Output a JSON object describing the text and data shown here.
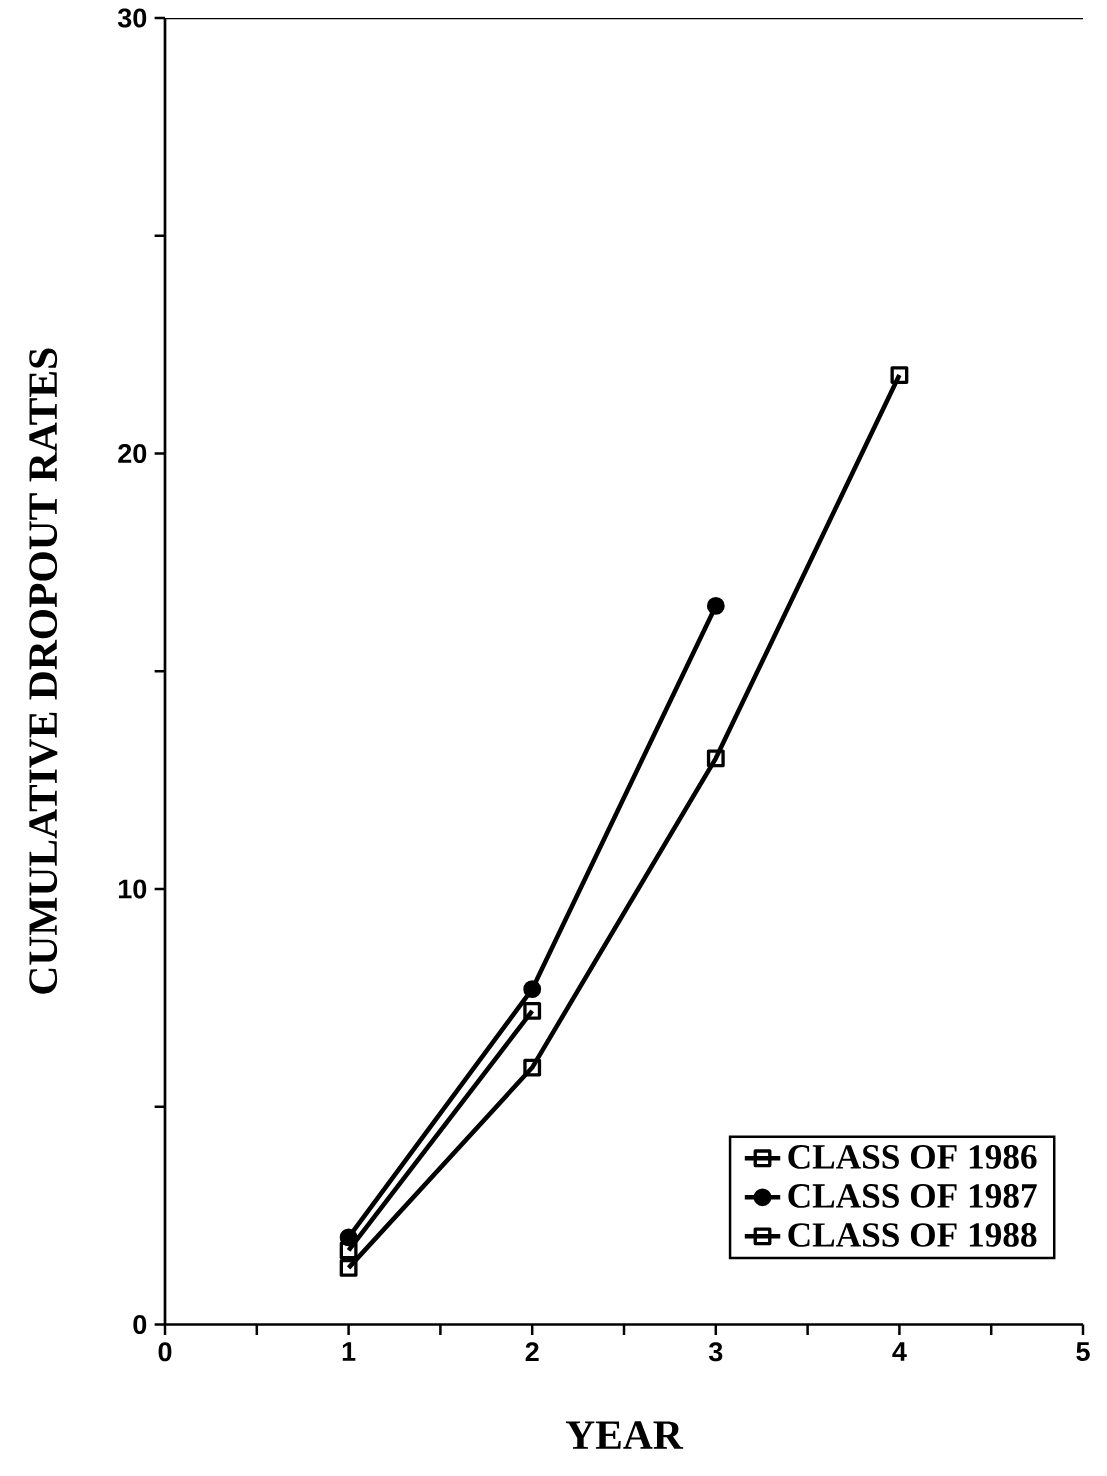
{
  "chart_data": {
    "type": "line",
    "xlabel": "YEAR",
    "ylabel": "CUMULATIVE DROPOUT RATES",
    "x": [
      1,
      2,
      3,
      4
    ],
    "series": [
      {
        "name": "CLASS OF 1986",
        "color": "#000000",
        "marker": "square",
        "values": [
          1.3,
          5.9,
          13.0,
          21.8
        ]
      },
      {
        "name": "CLASS OF 1987",
        "color": "#000000",
        "marker": "circle",
        "values": [
          2.0,
          7.7,
          16.5,
          null
        ]
      },
      {
        "name": "CLASS OF 1988",
        "color": "#000000",
        "marker": "square",
        "values": [
          1.7,
          7.2,
          null,
          null
        ]
      }
    ],
    "xlim": [
      0,
      5
    ],
    "ylim": [
      0,
      30
    ],
    "xticks": [
      0,
      {
        "value": 0.5,
        "label": null
      },
      1,
      {
        "value": 1.5,
        "label": null
      },
      2,
      {
        "value": 2.5,
        "label": null
      },
      3,
      {
        "value": 3.5,
        "label": null
      },
      4,
      {
        "value": 4.5,
        "label": null
      },
      5
    ],
    "yticks": [
      0,
      {
        "value": 5,
        "label": null
      },
      10,
      {
        "value": 15,
        "label": null
      },
      20,
      {
        "value": 25,
        "label": null
      },
      30
    ],
    "legend": "bottom right",
    "line_style": "solid",
    "grid": false
  }
}
